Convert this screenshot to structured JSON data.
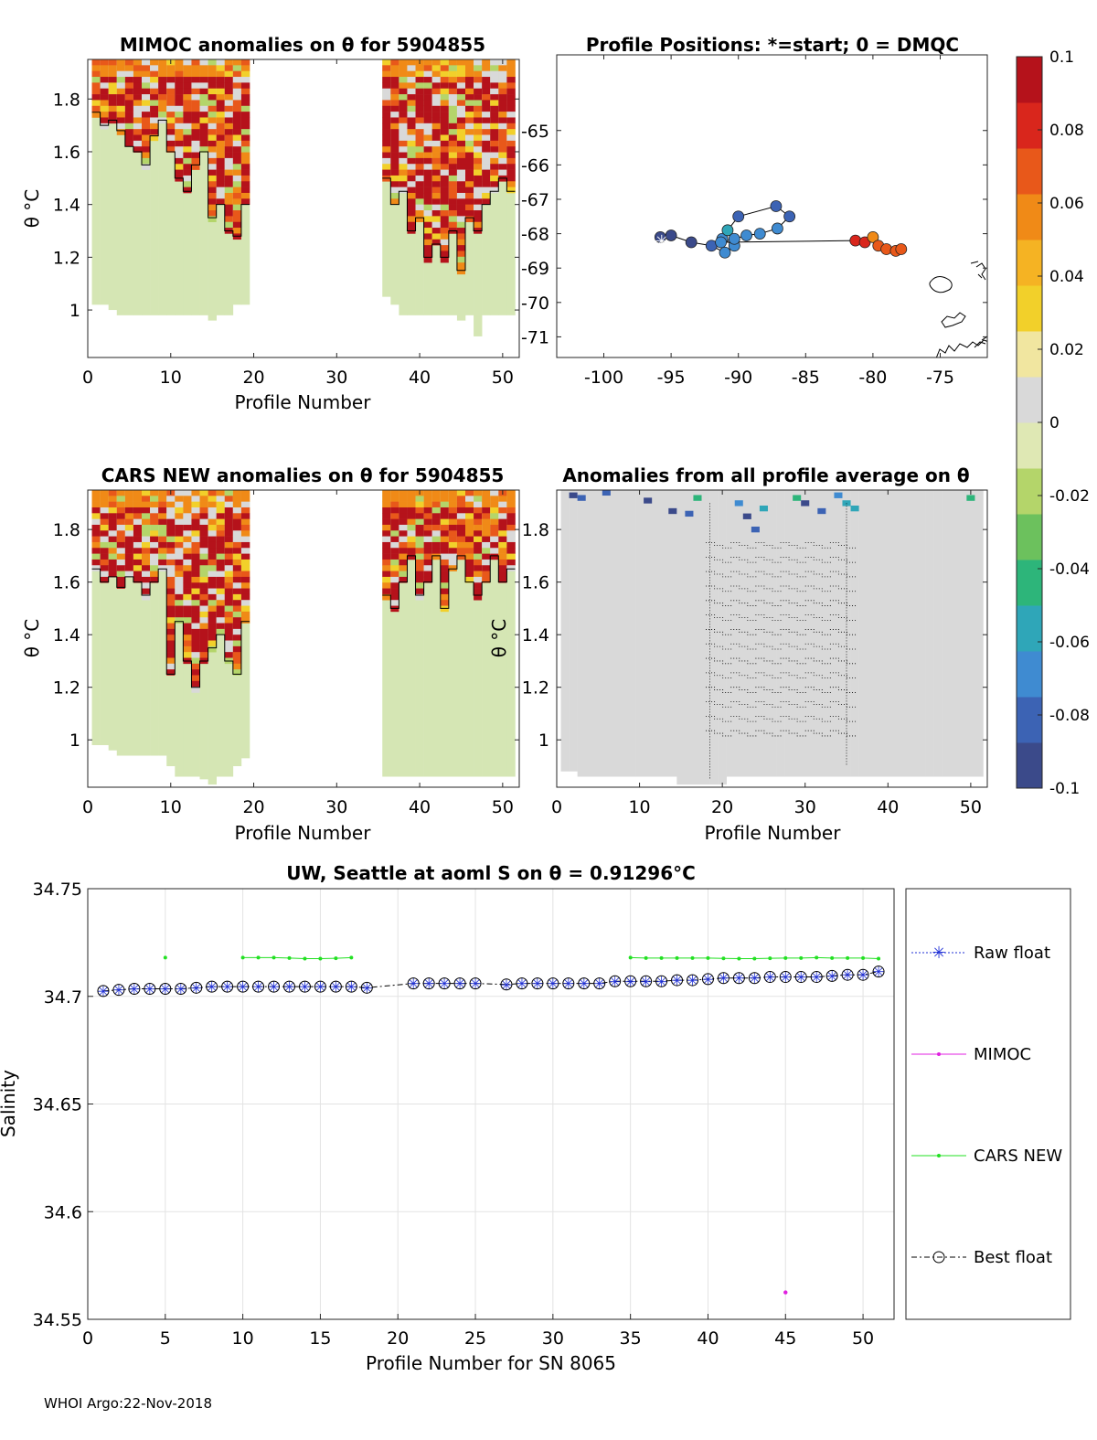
{
  "footer": "WHOI Argo:22-Nov-2018",
  "colorbar": {
    "min": -0.1,
    "max": 0.1,
    "tick_labels": [
      "0.1",
      "0.08",
      "0.06",
      "0.04",
      "0.02",
      "0",
      "-0.02",
      "-0.04",
      "-0.06",
      "-0.08",
      "-0.1"
    ],
    "colors": [
      "#3b4a8a",
      "#3c63b4",
      "#3f8bd1",
      "#2fa6b8",
      "#2db57a",
      "#6cc15d",
      "#b4d56a",
      "#dfe8b4",
      "#d9d9d9",
      "#f1e6a0",
      "#f2d02a",
      "#f5b323",
      "#f08a17",
      "#e8581a",
      "#d9261c",
      "#b5121b"
    ]
  },
  "chart_data": [
    {
      "id": "mimoc",
      "type": "heatmap",
      "title": "MIMOC anomalies on θ  for 5904855",
      "xlabel": "Profile Number",
      "ylabel": "θ °C",
      "xlim": [
        0,
        52
      ],
      "ylim": [
        0.82,
        1.95
      ],
      "xticks": [
        "0",
        "10",
        "20",
        "30",
        "40",
        "50"
      ],
      "yticks": [
        "1",
        "1.2",
        "1.4",
        "1.6",
        "1.8"
      ],
      "blocks": [
        {
          "x0": 0.5,
          "x1": 19.5,
          "ybot": [
            1.02,
            1.02,
            1.0,
            0.98,
            0.98,
            0.98,
            0.98,
            0.98,
            0.98,
            0.98,
            0.98,
            0.98,
            0.98,
            0.98,
            0.96,
            0.98,
            0.98,
            1.02,
            1.02
          ],
          "warm_top": 1.95,
          "warm_bottom": [
            1.75,
            1.7,
            1.72,
            1.68,
            1.62,
            1.6,
            1.55,
            1.66,
            1.72,
            1.6,
            1.5,
            1.45,
            1.55,
            1.6,
            1.35,
            1.4,
            1.3,
            1.28,
            1.4
          ]
        },
        {
          "x0": 35.5,
          "x1": 51.5,
          "ybot": [
            1.05,
            1.02,
            0.98,
            0.98,
            0.98,
            0.98,
            0.98,
            0.98,
            0.98,
            0.96,
            0.98,
            0.9,
            0.98,
            0.98,
            0.98,
            0.98
          ],
          "warm_top": 1.95,
          "warm_bottom": [
            1.5,
            1.4,
            1.45,
            1.3,
            1.35,
            1.2,
            1.25,
            1.2,
            1.3,
            1.15,
            1.35,
            1.3,
            1.4,
            1.45,
            1.5,
            1.45
          ]
        }
      ]
    },
    {
      "id": "positions",
      "type": "scatter",
      "title": "Profile Positions: *=start; 0 = DMQC",
      "xlim": [
        -103.5,
        -71.5
      ],
      "ylim": [
        -71.6,
        -62.8
      ],
      "xticks": [
        -100,
        -95,
        -90,
        -85,
        -80,
        -75
      ],
      "xtick_labels": [
        "-100",
        "-95",
        "-90",
        "-85",
        "-80",
        "-75"
      ],
      "yticks": [
        -65,
        -66,
        -67,
        -68,
        -69,
        -70,
        -71
      ],
      "ytick_labels": [
        "-65",
        "-66",
        "-67",
        "-68",
        "-69",
        "-70",
        "-71"
      ],
      "start_marker": {
        "lon": -95.7,
        "lat": -68.2
      },
      "points": [
        {
          "lon": -95.8,
          "lat": -68.1,
          "value": -0.1
        },
        {
          "lon": -95.0,
          "lat": -68.05,
          "value": -0.095
        },
        {
          "lon": -93.5,
          "lat": -68.25,
          "value": -0.09
        },
        {
          "lon": -92.0,
          "lat": -68.35,
          "value": -0.085
        },
        {
          "lon": -91.0,
          "lat": -68.55,
          "value": -0.075
        },
        {
          "lon": -90.3,
          "lat": -68.35,
          "value": -0.07
        },
        {
          "lon": -91.2,
          "lat": -68.15,
          "value": -0.065
        },
        {
          "lon": -90.8,
          "lat": -67.9,
          "value": -0.06
        },
        {
          "lon": -90.0,
          "lat": -67.5,
          "value": -0.08
        },
        {
          "lon": -87.2,
          "lat": -67.2,
          "value": -0.085
        },
        {
          "lon": -86.2,
          "lat": -67.5,
          "value": -0.08
        },
        {
          "lon": -87.1,
          "lat": -67.85,
          "value": -0.075
        },
        {
          "lon": -88.4,
          "lat": -68.0,
          "value": -0.07
        },
        {
          "lon": -89.4,
          "lat": -68.05,
          "value": -0.068
        },
        {
          "lon": -90.3,
          "lat": -68.15,
          "value": -0.066
        },
        {
          "lon": -91.3,
          "lat": -68.25,
          "value": -0.064
        },
        {
          "lon": -81.3,
          "lat": -68.2,
          "value": 0.085
        },
        {
          "lon": -80.6,
          "lat": -68.25,
          "value": 0.08
        },
        {
          "lon": -80.0,
          "lat": -68.1,
          "value": 0.05
        },
        {
          "lon": -79.6,
          "lat": -68.35,
          "value": 0.07
        },
        {
          "lon": -79.0,
          "lat": -68.45,
          "value": 0.075
        },
        {
          "lon": -78.3,
          "lat": -68.5,
          "value": 0.07
        },
        {
          "lon": -77.9,
          "lat": -68.45,
          "value": 0.065
        }
      ]
    },
    {
      "id": "cars",
      "type": "heatmap",
      "title": "CARS NEW anomalies on θ for 5904855",
      "xlabel": "Profile Number",
      "ylabel": "θ °C",
      "xlim": [
        0,
        52
      ],
      "ylim": [
        0.82,
        1.95
      ],
      "xticks": [
        "0",
        "10",
        "20",
        "30",
        "40",
        "50"
      ],
      "yticks": [
        "1",
        "1.2",
        "1.4",
        "1.6",
        "1.8"
      ],
      "blocks": [
        {
          "x0": 0.5,
          "x1": 19.5,
          "ybot": [
            0.98,
            0.98,
            0.96,
            0.94,
            0.94,
            0.94,
            0.94,
            0.94,
            0.94,
            0.9,
            0.86,
            0.86,
            0.86,
            0.85,
            0.83,
            0.86,
            0.86,
            0.9,
            0.93
          ],
          "warm_top": 1.95,
          "warm_bottom": [
            1.65,
            1.6,
            1.62,
            1.58,
            1.62,
            1.6,
            1.55,
            1.6,
            1.65,
            1.25,
            1.45,
            1.3,
            1.2,
            1.3,
            1.35,
            1.4,
            1.3,
            1.25,
            1.45
          ]
        },
        {
          "x0": 35.5,
          "x1": 51.5,
          "ybot": [
            0.86,
            0.86,
            0.86,
            0.86,
            0.86,
            0.86,
            0.86,
            0.86,
            0.86,
            0.86,
            0.86,
            0.86,
            0.86,
            0.86,
            0.86,
            0.86
          ],
          "warm_top": 1.95,
          "warm_bottom": [
            1.55,
            1.5,
            1.6,
            1.7,
            1.55,
            1.6,
            1.7,
            1.5,
            1.65,
            1.7,
            1.6,
            1.55,
            1.6,
            1.7,
            1.6,
            1.65
          ]
        }
      ]
    },
    {
      "id": "allavg",
      "type": "heatmap",
      "title": "Anomalies from all profile average on θ",
      "xlabel": "Profile Number",
      "ylabel": "θ °C",
      "xlim": [
        0,
        52
      ],
      "ylim": [
        0.82,
        1.95
      ],
      "xticks": [
        "0",
        "10",
        "20",
        "30",
        "40",
        "50"
      ],
      "yticks": [
        "1",
        "1.2",
        "1.4",
        "1.6",
        "1.8"
      ],
      "note": "mostly near-zero anomalies with sparse negative cells near the top"
    },
    {
      "id": "salinity",
      "type": "line",
      "title": "UW, Seattle at aoml S on θ = 0.91296°C",
      "xlabel": "Profile Number for SN 8065",
      "ylabel": "Salinity",
      "xlim": [
        0,
        52
      ],
      "ylim": [
        34.55,
        34.75
      ],
      "xticks": [
        "0",
        "5",
        "10",
        "15",
        "20",
        "25",
        "30",
        "35",
        "40",
        "45",
        "50"
      ],
      "yticks": [
        "34.55",
        "34.6",
        "34.65",
        "34.7",
        "34.75"
      ],
      "legend": [
        "Raw float",
        "MIMOC",
        "CARS NEW",
        "Best float"
      ],
      "series": [
        {
          "name": "Raw float",
          "x": [
            1,
            2,
            3,
            4,
            5,
            6,
            7,
            8,
            9,
            10,
            11,
            12,
            13,
            14,
            15,
            16,
            17,
            18,
            21,
            22,
            23,
            24,
            25,
            27,
            28,
            29,
            30,
            31,
            32,
            33,
            34,
            35,
            36,
            37,
            38,
            39,
            40,
            41,
            42,
            43,
            44,
            45,
            46,
            47,
            48,
            49,
            50,
            51
          ],
          "values": [
            34.7025,
            34.703,
            34.7035,
            34.7035,
            34.7035,
            34.7035,
            34.704,
            34.7045,
            34.7045,
            34.7045,
            34.7045,
            34.7045,
            34.7045,
            34.7045,
            34.7045,
            34.7045,
            34.7045,
            34.704,
            34.706,
            34.706,
            34.706,
            34.706,
            34.706,
            34.7055,
            34.706,
            34.706,
            34.706,
            34.706,
            34.706,
            34.706,
            34.707,
            34.707,
            34.707,
            34.707,
            34.7075,
            34.7075,
            34.708,
            34.7085,
            34.7085,
            34.7085,
            34.709,
            34.709,
            34.709,
            34.709,
            34.7095,
            34.71,
            34.71,
            34.7115
          ]
        },
        {
          "name": "MIMOC",
          "x": [
            45
          ],
          "values": [
            34.5625
          ]
        },
        {
          "name": "CARS NEW",
          "segments": [
            {
              "x": [
                5
              ],
              "values": [
                34.718
              ]
            },
            {
              "x": [
                10,
                11,
                12,
                13,
                14,
                15,
                16,
                17
              ],
              "values": [
                34.718,
                34.718,
                34.718,
                34.7178,
                34.7175,
                34.7175,
                34.7177,
                34.718
              ]
            },
            {
              "x": [
                35,
                36,
                37,
                38,
                39,
                40,
                41,
                42,
                43,
                44,
                45,
                46,
                47,
                48,
                49,
                50,
                51
              ],
              "values": [
                34.718,
                34.7178,
                34.7178,
                34.7178,
                34.7178,
                34.7178,
                34.7176,
                34.7175,
                34.7175,
                34.7177,
                34.7178,
                34.7178,
                34.718,
                34.7178,
                34.7178,
                34.7178,
                34.7175
              ]
            }
          ]
        },
        {
          "name": "Best float",
          "x": [
            1,
            2,
            3,
            4,
            5,
            6,
            7,
            8,
            9,
            10,
            11,
            12,
            13,
            14,
            15,
            16,
            17,
            18,
            21,
            22,
            23,
            24,
            25,
            27,
            28,
            29,
            30,
            31,
            32,
            33,
            34,
            35,
            36,
            37,
            38,
            39,
            40,
            41,
            42,
            43,
            44,
            45,
            46,
            47,
            48,
            49,
            50,
            51
          ],
          "values": [
            34.7025,
            34.703,
            34.7035,
            34.7035,
            34.7035,
            34.7035,
            34.704,
            34.7045,
            34.7045,
            34.7045,
            34.7045,
            34.7045,
            34.7045,
            34.7045,
            34.7045,
            34.7045,
            34.7045,
            34.704,
            34.706,
            34.706,
            34.706,
            34.706,
            34.706,
            34.7055,
            34.706,
            34.706,
            34.706,
            34.706,
            34.706,
            34.706,
            34.707,
            34.707,
            34.707,
            34.707,
            34.7075,
            34.7075,
            34.708,
            34.7085,
            34.7085,
            34.7085,
            34.709,
            34.709,
            34.709,
            34.709,
            34.7095,
            34.71,
            34.71,
            34.7115
          ]
        }
      ]
    }
  ]
}
